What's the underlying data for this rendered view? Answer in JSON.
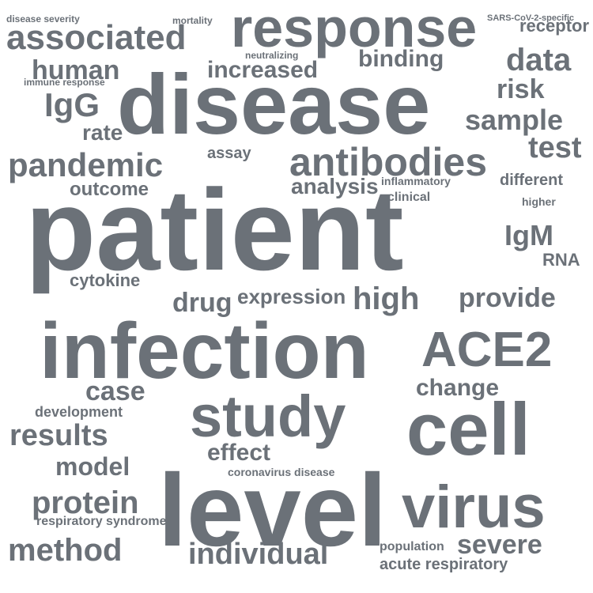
{
  "words": [
    "patient",
    "disease",
    "infection",
    "level",
    "cell",
    "virus",
    "response",
    "study",
    "ACE2",
    "associated",
    "antibodies",
    "pandemic",
    "data",
    "IgG",
    "IgM",
    "test",
    "sample",
    "method",
    "results",
    "protein",
    "individual",
    "severe",
    "binding",
    "increased",
    "risk",
    "human",
    "analysis",
    "drug",
    "high",
    "provide",
    "case",
    "change",
    "effect",
    "expression",
    "model",
    "outcome",
    "different",
    "receptor",
    "RNA",
    "cytokine",
    "rate",
    "development",
    "assay",
    "acute respiratory",
    "respiratory syndrome",
    "population",
    "coronavirus disease",
    "clinical",
    "higher",
    "inflammatory",
    "mortality",
    "disease severity",
    "SARS-CoV-2-specific",
    "immune response",
    "neutralizing"
  ],
  "colors": {
    "text": "#6b7178",
    "background": "#ffffff"
  }
}
